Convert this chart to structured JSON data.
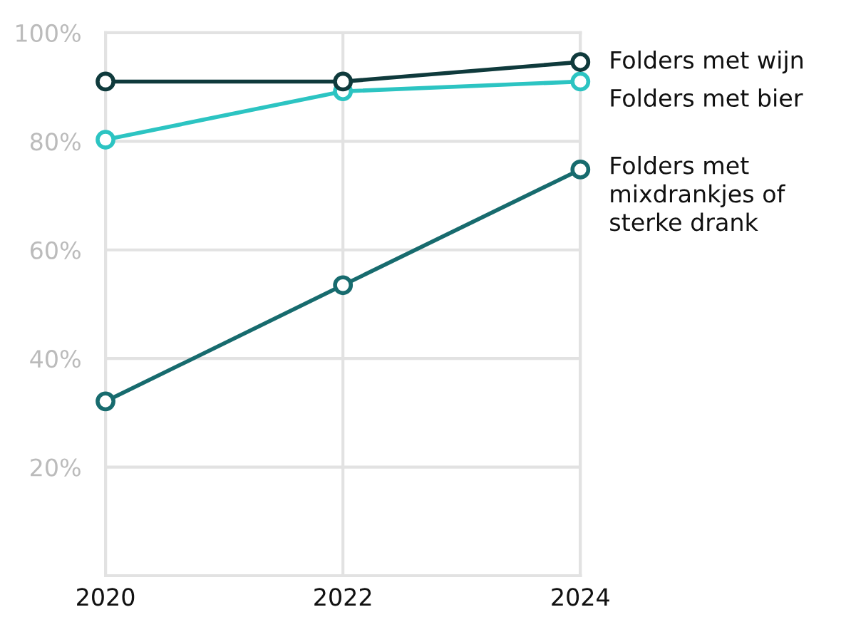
{
  "chart_data": {
    "type": "line",
    "x": [
      2020,
      2022,
      2024
    ],
    "xlim": [
      2020,
      2024
    ],
    "xticks": [
      2020,
      2022,
      2024
    ],
    "ylim": [
      0,
      100
    ],
    "yticks": [
      {
        "value": 20,
        "label": "20%"
      },
      {
        "value": 40,
        "label": "40%"
      },
      {
        "value": 60,
        "label": "60%"
      },
      {
        "value": 80,
        "label": "80%"
      },
      {
        "value": 100,
        "label": "100%"
      }
    ],
    "grid": true,
    "legend": false,
    "marker": "circle",
    "line_style": "solid",
    "series": [
      {
        "name": "Folders met wijn",
        "color": "#0f3a3c",
        "values": [
          91,
          91,
          94.6
        ]
      },
      {
        "name": "Folders met bier",
        "color": "#2cc4c2",
        "values": [
          80.3,
          89.2,
          91
        ]
      },
      {
        "name": "Folders met\nmixdrankjes of\nsterke drank",
        "color": "#176b6e",
        "values": [
          32.1,
          53.5,
          74.8
        ]
      }
    ]
  }
}
